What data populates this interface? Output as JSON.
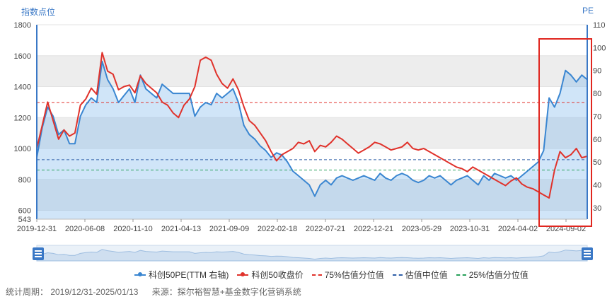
{
  "chart_data": {
    "type": "line",
    "ylabel_left": "指数点位",
    "ylabel_right": "PE",
    "left_axis": {
      "ticks": [
        1800,
        1600,
        1400,
        1200,
        1000,
        800,
        600,
        543
      ],
      "min": 543,
      "max": 1800
    },
    "right_axis": {
      "ticks": [
        110,
        100,
        90,
        80,
        70,
        60,
        50,
        40,
        30
      ],
      "min": 25,
      "max": 110
    },
    "x_ticks": [
      "2019-12-31",
      "2020-06-08",
      "2020-11-10",
      "2021-04-13",
      "2021-09-09",
      "2022-02-18",
      "2022-07-21",
      "2022-12-21",
      "2023-05-29",
      "2023-10-31",
      "2024-04-02",
      "2024-09-02"
    ],
    "series": [
      {
        "name": "科创50PE(TTM 右轴)",
        "axis": "right",
        "color": "#3a86d1",
        "values": [
          52,
          65,
          74,
          70,
          62,
          64,
          58,
          58,
          70,
          75,
          78,
          76,
          94,
          86,
          82,
          76,
          79,
          82,
          76,
          88,
          82,
          80,
          78,
          84,
          82,
          80,
          80,
          80,
          80,
          70,
          74,
          76,
          75,
          80,
          78,
          80,
          82,
          76,
          66,
          62,
          60,
          57,
          55,
          52,
          54,
          53,
          50,
          46,
          44,
          42,
          40,
          35,
          40,
          42,
          40,
          43,
          44,
          43,
          42,
          43,
          44,
          43,
          42,
          45,
          43,
          42,
          44,
          45,
          44,
          42,
          41,
          42,
          44,
          43,
          44,
          42,
          40,
          42,
          43,
          44,
          42,
          40,
          44,
          42,
          45,
          44,
          43,
          44,
          42,
          44,
          46,
          48,
          50,
          55,
          78,
          74,
          80,
          90,
          88,
          85,
          88,
          86
        ]
      },
      {
        "name": "科创50收盘价",
        "axis": "left",
        "color": "#e0322b",
        "values": [
          1000,
          1150,
          1300,
          1180,
          1060,
          1120,
          1080,
          1100,
          1280,
          1320,
          1390,
          1350,
          1620,
          1500,
          1480,
          1380,
          1400,
          1410,
          1360,
          1470,
          1420,
          1390,
          1360,
          1300,
          1280,
          1230,
          1200,
          1280,
          1320,
          1400,
          1570,
          1590,
          1570,
          1480,
          1420,
          1390,
          1450,
          1380,
          1270,
          1180,
          1150,
          1100,
          1050,
          980,
          920,
          960,
          980,
          1000,
          1040,
          1030,
          1050,
          980,
          1020,
          1010,
          1040,
          1080,
          1060,
          1030,
          1000,
          970,
          990,
          1010,
          1040,
          1030,
          1010,
          990,
          1000,
          1010,
          1040,
          1000,
          990,
          1000,
          980,
          960,
          940,
          920,
          900,
          880,
          870,
          850,
          880,
          860,
          840,
          820,
          800,
          780,
          760,
          790,
          810,
          770,
          750,
          740,
          720,
          700,
          680,
          860,
          980,
          940,
          960,
          1000,
          940,
          950
        ]
      }
    ],
    "reference_lines": [
      {
        "name": "75%估值分位值",
        "value_right": 76,
        "color": "#e0322b"
      },
      {
        "name": "估值中位值",
        "value_right": 51,
        "color": "#2f5fa8"
      },
      {
        "name": "25%估值分位值",
        "value_right": 46.5,
        "color": "#27a05a"
      }
    ],
    "grid": true
  },
  "footer": {
    "period": "统计周期： 2019/12/31-2025/01/13",
    "source": "来源：探尔裕智慧+基金数字化营销系统"
  }
}
